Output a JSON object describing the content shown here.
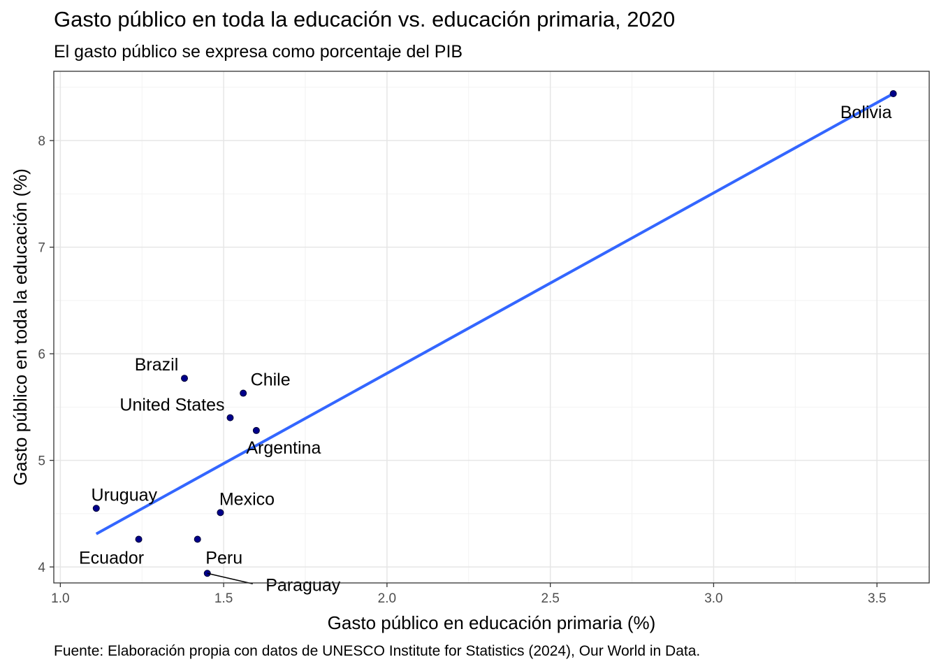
{
  "chart_data": {
    "type": "scatter",
    "title": "Gasto público en toda la educación vs. educación primaria, 2020",
    "subtitle": "El gasto público se expresa como porcentaje del PIB",
    "xlabel": "Gasto público en educación primaria (%)",
    "ylabel": "Gasto público en toda la educación (%)",
    "caption": "Fuente: Elaboración propia con datos de UNESCO Institute for Statistics (2024), Our World in Data.",
    "xlim": [
      0.98,
      3.66
    ],
    "ylim": [
      3.85,
      8.65
    ],
    "x_ticks": [
      1.0,
      1.5,
      2.0,
      2.5,
      3.0,
      3.5
    ],
    "x_tick_labels": [
      "1.0",
      "1.5",
      "2.0",
      "2.5",
      "3.0",
      "3.5"
    ],
    "y_ticks": [
      4,
      5,
      6,
      7,
      8
    ],
    "y_tick_labels": [
      "4",
      "5",
      "6",
      "7",
      "8"
    ],
    "grid": true,
    "point_color": "#00008b",
    "fit_line_color": "#3366ff",
    "points": [
      {
        "label": "Bolivia",
        "x": 3.55,
        "y": 8.44
      },
      {
        "label": "Brazil",
        "x": 1.38,
        "y": 5.77
      },
      {
        "label": "Chile",
        "x": 1.56,
        "y": 5.63
      },
      {
        "label": "United States",
        "x": 1.52,
        "y": 5.4
      },
      {
        "label": "Argentina",
        "x": 1.6,
        "y": 5.28
      },
      {
        "label": "Uruguay",
        "x": 1.11,
        "y": 4.55
      },
      {
        "label": "Mexico",
        "x": 1.49,
        "y": 4.51
      },
      {
        "label": "Ecuador",
        "x": 1.24,
        "y": 4.26
      },
      {
        "label": "Peru",
        "x": 1.42,
        "y": 4.26
      },
      {
        "label": "Paraguay",
        "x": 1.45,
        "y": 3.94
      }
    ],
    "fit_line": {
      "x": [
        1.11,
        3.55
      ],
      "y": [
        4.31,
        8.44
      ]
    }
  }
}
